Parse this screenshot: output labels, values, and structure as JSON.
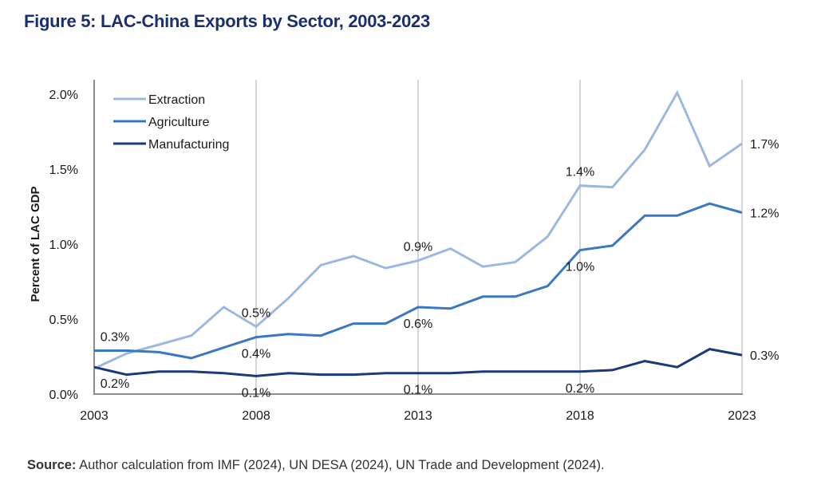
{
  "title": "Figure 5: LAC-China Exports by Sector, 2003-2023",
  "source": {
    "label": "Source:",
    "text": " Author calculation from IMF (2024), UN DESA (2024), UN Trade and Development (2024)."
  },
  "chart_data": {
    "type": "line",
    "title": "Figure 5: LAC-China Exports by Sector, 2003-2023",
    "xlabel": "",
    "ylabel": "Percent of LAC GDP",
    "x": [
      2003,
      2004,
      2005,
      2006,
      2007,
      2008,
      2009,
      2010,
      2011,
      2012,
      2013,
      2014,
      2015,
      2016,
      2017,
      2018,
      2019,
      2020,
      2021,
      2022,
      2023
    ],
    "xlim": [
      2003,
      2023
    ],
    "x_ticks": [
      2003,
      2008,
      2013,
      2018,
      2023
    ],
    "x_tick_labels": [
      "2003",
      "2008",
      "2013",
      "2018",
      "2023"
    ],
    "ylim": [
      0,
      2.0
    ],
    "y_ticks": [
      0,
      0.5,
      1.0,
      1.5,
      2.0
    ],
    "y_tick_labels": [
      "0.0%",
      "0.5%",
      "1.0%",
      "1.5%",
      "2.0%"
    ],
    "grid": "vertical lines at 2008, 2013, 2018, 2023",
    "legend_position": "top-left",
    "series": [
      {
        "name": "Extraction",
        "color": "#9db8e0",
        "values": [
          0.17,
          0.27,
          0.33,
          0.39,
          0.58,
          0.45,
          0.64,
          0.86,
          0.92,
          0.84,
          0.89,
          0.97,
          0.85,
          0.88,
          1.05,
          1.39,
          1.38,
          1.63,
          2.01,
          1.52,
          1.67
        ],
        "data_labels": [
          {
            "x": 2008,
            "text": "0.5%",
            "position": "above"
          },
          {
            "x": 2013,
            "text": "0.9%",
            "position": "above"
          },
          {
            "x": 2018,
            "text": "1.4%",
            "position": "above"
          },
          {
            "x": 2023,
            "text": "1.7%",
            "position": "right"
          }
        ]
      },
      {
        "name": "Agriculture",
        "color": "#3a78c2",
        "values": [
          0.29,
          0.29,
          0.28,
          0.24,
          0.31,
          0.38,
          0.4,
          0.39,
          0.47,
          0.47,
          0.58,
          0.57,
          0.65,
          0.65,
          0.72,
          0.96,
          0.99,
          1.19,
          1.19,
          1.27,
          1.21
        ],
        "data_labels": [
          {
            "x": 2003,
            "text": "0.3%",
            "position": "above"
          },
          {
            "x": 2008,
            "text": "0.4%",
            "position": "below"
          },
          {
            "x": 2013,
            "text": "0.6%",
            "position": "below"
          },
          {
            "x": 2018,
            "text": "1.0%",
            "position": "below"
          },
          {
            "x": 2023,
            "text": "1.2%",
            "position": "right"
          }
        ]
      },
      {
        "name": "Manufacturing",
        "color": "#1b3a7a",
        "values": [
          0.18,
          0.13,
          0.15,
          0.15,
          0.14,
          0.12,
          0.14,
          0.13,
          0.13,
          0.14,
          0.14,
          0.14,
          0.15,
          0.15,
          0.15,
          0.15,
          0.16,
          0.22,
          0.18,
          0.3,
          0.26
        ],
        "data_labels": [
          {
            "x": 2003,
            "text": "0.2%",
            "position": "below"
          },
          {
            "x": 2008,
            "text": "0.1%",
            "position": "below"
          },
          {
            "x": 2013,
            "text": "0.1%",
            "position": "below"
          },
          {
            "x": 2018,
            "text": "0.2%",
            "position": "below"
          },
          {
            "x": 2023,
            "text": "0.3%",
            "position": "right"
          }
        ]
      }
    ]
  }
}
